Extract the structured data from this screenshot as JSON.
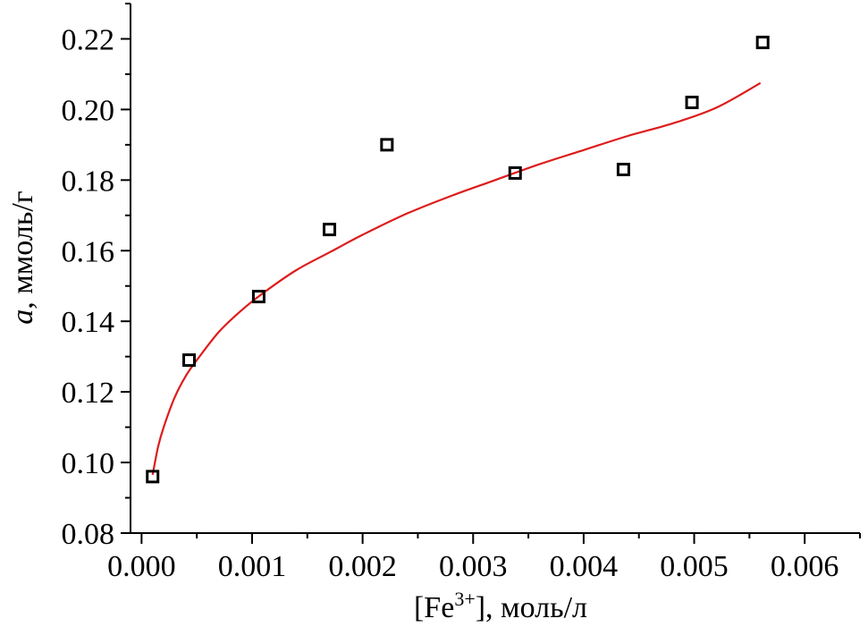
{
  "chart_data": {
    "type": "scatter",
    "xlabel": "[Fe³⁺], моль/л",
    "xlabel_parts": {
      "pre": "[Fe",
      "sup": "3+",
      "post": "], моль/л"
    },
    "ylabel": "a, ммоль/г",
    "ylabel_parts": {
      "symbol": "a",
      "rest": ", ммоль/г"
    },
    "xlim": [
      -0.0001,
      0.0065
    ],
    "ylim": [
      0.08,
      0.23
    ],
    "x_ticks": [
      0.0,
      0.001,
      0.002,
      0.003,
      0.004,
      0.005,
      0.006
    ],
    "x_tick_labels": [
      "0.000",
      "0.001",
      "0.002",
      "0.003",
      "0.004",
      "0.005",
      "0.006"
    ],
    "y_ticks": [
      0.08,
      0.1,
      0.12,
      0.14,
      0.16,
      0.18,
      0.2,
      0.22
    ],
    "y_tick_labels": [
      "0.08",
      "0.10",
      "0.12",
      "0.14",
      "0.16",
      "0.18",
      "0.20",
      "0.22"
    ],
    "grid": false,
    "series": [
      {
        "type": "scatter",
        "marker": "open-square",
        "color": "#000000",
        "x": [
          0.0001,
          0.00043,
          0.00106,
          0.0017,
          0.00222,
          0.00338,
          0.00436,
          0.00498,
          0.00562
        ],
        "y": [
          0.096,
          0.129,
          0.147,
          0.166,
          0.19,
          0.182,
          0.183,
          0.202,
          0.219
        ]
      },
      {
        "type": "line",
        "color": "#dd1c1c",
        "x": [
          0.0001,
          0.00015,
          0.0002,
          0.0003,
          0.0004,
          0.0005,
          0.0007,
          0.0009,
          0.0011,
          0.0014,
          0.0017,
          0.002,
          0.0024,
          0.0028,
          0.0032,
          0.0036,
          0.004,
          0.0044,
          0.0048,
          0.0052,
          0.0056
        ],
        "y": [
          0.0965,
          0.1045,
          0.11,
          0.1185,
          0.1245,
          0.129,
          0.137,
          0.143,
          0.148,
          0.1545,
          0.1595,
          0.1645,
          0.1705,
          0.1755,
          0.18,
          0.1845,
          0.1885,
          0.1925,
          0.196,
          0.2005,
          0.2075
        ]
      }
    ]
  }
}
